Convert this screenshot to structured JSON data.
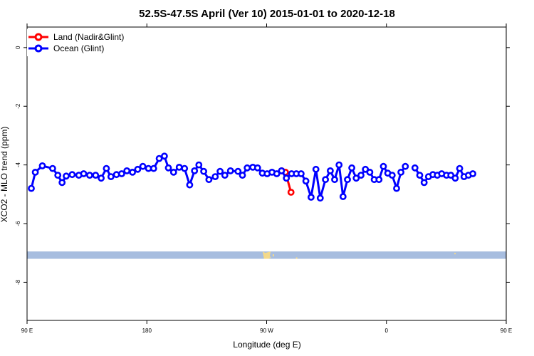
{
  "chart_data": {
    "type": "line",
    "title": "52.5S-47.5S April (Ver 10)   2015-01-01 to 2020-12-18",
    "xlabel": "Longitude (deg E)",
    "ylabel": "XCO2 - MLO trend (ppm)",
    "xlim": [
      90,
      450
    ],
    "ylim": [
      -9.3,
      0.7
    ],
    "x_ticks": [
      {
        "value": 90,
        "label": "90 E"
      },
      {
        "value": 180,
        "label": "180"
      },
      {
        "value": 270,
        "label": "90 W"
      },
      {
        "value": 360,
        "label": "0"
      },
      {
        "value": 450,
        "label": "90 E"
      },
      {
        "value": 540,
        "label": "180"
      }
    ],
    "y_ticks": [
      {
        "value": 0,
        "label": "0"
      },
      {
        "value": -2,
        "label": "-2"
      },
      {
        "value": -4,
        "label": "-4"
      },
      {
        "value": -6,
        "label": "-6"
      },
      {
        "value": -8,
        "label": "-8"
      }
    ],
    "grid": false,
    "legend_position": "top-left",
    "series": [
      {
        "name": "Land (Nadir&Glint)",
        "color": "#ff0000",
        "points": [
          [
            281.3,
            -4.2
          ],
          [
            284.1,
            -4.25
          ],
          [
            288.3,
            -4.93
          ]
        ]
      },
      {
        "name": "Ocean (Glint)",
        "color": "#0000ff",
        "points": [
          [
            93.2,
            -4.8
          ],
          [
            96.2,
            -4.25
          ],
          [
            101.5,
            -4.03
          ],
          [
            109.2,
            -4.12
          ],
          [
            113.1,
            -4.35
          ],
          [
            116.3,
            -4.6
          ],
          [
            119.4,
            -4.38
          ],
          [
            123.9,
            -4.33
          ],
          [
            128.9,
            -4.35
          ],
          [
            132.5,
            -4.3
          ],
          [
            137.0,
            -4.35
          ],
          [
            141.5,
            -4.35
          ],
          [
            145.7,
            -4.45
          ],
          [
            149.6,
            -4.12
          ],
          [
            153.0,
            -4.4
          ],
          [
            157.2,
            -4.33
          ],
          [
            161.1,
            -4.3
          ],
          [
            165.0,
            -4.2
          ],
          [
            169.2,
            -4.25
          ],
          [
            173.1,
            -4.15
          ],
          [
            177.0,
            -4.05
          ],
          [
            181.2,
            -4.12
          ],
          [
            185.1,
            -4.12
          ],
          [
            189.3,
            -3.78
          ],
          [
            193.2,
            -3.7
          ],
          [
            196.2,
            -4.1
          ],
          [
            200.1,
            -4.25
          ],
          [
            204.3,
            -4.08
          ],
          [
            208.3,
            -4.12
          ],
          [
            212.2,
            -4.68
          ],
          [
            215.8,
            -4.2
          ],
          [
            219.1,
            -4.0
          ],
          [
            222.7,
            -4.22
          ],
          [
            226.6,
            -4.5
          ],
          [
            231.4,
            -4.4
          ],
          [
            235.0,
            -4.22
          ],
          [
            238.6,
            -4.35
          ],
          [
            242.8,
            -4.2
          ],
          [
            248.5,
            -4.22
          ],
          [
            251.8,
            -4.35
          ],
          [
            255.4,
            -4.1
          ],
          [
            259.6,
            -4.08
          ],
          [
            263.2,
            -4.1
          ],
          [
            266.8,
            -4.28
          ],
          [
            270.4,
            -4.3
          ],
          [
            274.0,
            -4.25
          ],
          [
            277.6,
            -4.3
          ],
          [
            281.2,
            -4.2
          ],
          [
            284.8,
            -4.45
          ],
          [
            288.7,
            -4.3
          ],
          [
            292.3,
            -4.3
          ],
          [
            295.9,
            -4.3
          ],
          [
            299.5,
            -4.55
          ],
          [
            303.4,
            -5.1
          ],
          [
            307.0,
            -4.15
          ],
          [
            310.3,
            -5.13
          ],
          [
            314.2,
            -4.5
          ],
          [
            317.8,
            -4.2
          ],
          [
            321.1,
            -4.5
          ],
          [
            324.4,
            -4.0
          ],
          [
            327.4,
            -5.08
          ],
          [
            330.7,
            -4.5
          ],
          [
            334.0,
            -4.1
          ],
          [
            337.3,
            -4.45
          ],
          [
            340.9,
            -4.35
          ],
          [
            344.2,
            -4.15
          ],
          [
            347.5,
            -4.25
          ],
          [
            350.8,
            -4.5
          ],
          [
            354.4,
            -4.5
          ],
          [
            357.7,
            -4.05
          ],
          [
            361.0,
            -4.28
          ],
          [
            364.3,
            -4.35
          ],
          [
            367.6,
            -4.8
          ],
          [
            370.9,
            -4.25
          ],
          [
            374.2,
            -4.05
          ],
          [
            381.4,
            -4.1
          ],
          [
            385.0,
            -4.35
          ],
          [
            388.3,
            -4.6
          ],
          [
            391.6,
            -4.4
          ],
          [
            394.9,
            -4.33
          ],
          [
            398.2,
            -4.35
          ],
          [
            401.5,
            -4.3
          ],
          [
            405.1,
            -4.35
          ],
          [
            408.4,
            -4.35
          ],
          [
            411.7,
            -4.45
          ],
          [
            415.0,
            -4.12
          ],
          [
            418.3,
            -4.4
          ],
          [
            421.6,
            -4.35
          ],
          [
            424.9,
            -4.3
          ]
        ],
        "breaks_after_x": [
          374.2
        ]
      }
    ],
    "bottom_band": {
      "y_top": -6.95,
      "y_bottom": -7.2,
      "color": "#a7bddf"
    },
    "land_marks_color": "#f4d98a"
  }
}
